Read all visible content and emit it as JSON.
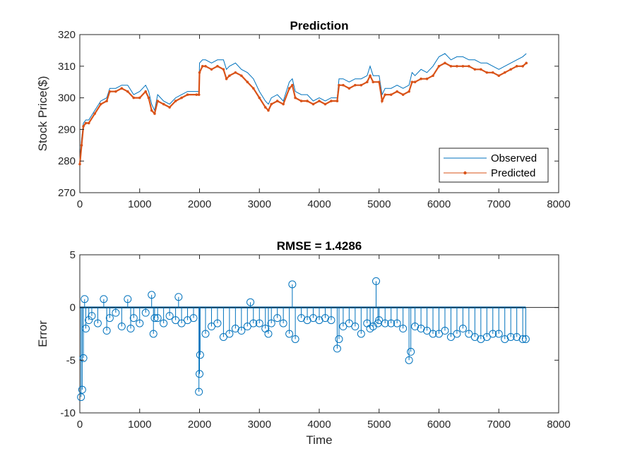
{
  "chart_data": [
    {
      "type": "line",
      "title": "Prediction",
      "xlabel": "",
      "ylabel": "Stock Price($)",
      "xlim": [
        0,
        8000
      ],
      "ylim": [
        270,
        320
      ],
      "xticks": [
        0,
        1000,
        2000,
        3000,
        4000,
        5000,
        6000,
        7000,
        8000
      ],
      "yticks": [
        270,
        280,
        290,
        300,
        310,
        320
      ],
      "grid": false,
      "legend": {
        "position": "bottom-right",
        "entries": [
          "Observed",
          "Predicted"
        ]
      },
      "series": [
        {
          "name": "Observed",
          "color": "#0072BD",
          "marker": "none",
          "x": [
            0,
            30,
            60,
            100,
            150,
            250,
            350,
            450,
            500,
            600,
            700,
            800,
            900,
            1000,
            1100,
            1150,
            1200,
            1250,
            1300,
            1400,
            1500,
            1600,
            1700,
            1800,
            1950,
            1990,
            2000,
            2050,
            2100,
            2200,
            2300,
            2400,
            2450,
            2500,
            2600,
            2700,
            2800,
            2900,
            3000,
            3100,
            3150,
            3200,
            3300,
            3400,
            3500,
            3550,
            3600,
            3700,
            3800,
            3900,
            4000,
            4100,
            4200,
            4300,
            4330,
            4400,
            4500,
            4600,
            4700,
            4800,
            4850,
            4900,
            5000,
            5050,
            5100,
            5200,
            5300,
            5400,
            5500,
            5550,
            5600,
            5700,
            5800,
            5900,
            6000,
            6100,
            6200,
            6300,
            6400,
            6500,
            6600,
            6700,
            6800,
            6900,
            7000,
            7100,
            7200,
            7300,
            7400,
            7460
          ],
          "y": [
            280,
            287,
            292,
            293,
            293,
            296,
            299,
            300,
            303,
            303,
            304,
            304,
            301,
            302,
            304,
            302,
            298,
            296,
            301,
            299,
            298,
            300,
            301,
            302,
            302,
            302,
            311,
            312,
            312,
            311,
            312,
            312,
            309,
            310,
            311,
            309,
            308,
            306,
            302,
            299,
            298,
            300,
            301,
            299,
            305,
            306,
            302,
            301,
            301,
            299,
            300,
            299,
            300,
            300,
            306,
            306,
            305,
            306,
            306,
            307,
            310,
            307,
            307,
            301,
            303,
            303,
            304,
            303,
            304,
            308,
            307,
            309,
            308,
            310,
            313,
            314,
            312,
            313,
            313,
            312,
            312,
            311,
            311,
            310,
            309,
            310,
            311,
            312,
            313,
            314
          ]
        },
        {
          "name": "Predicted",
          "color": "#D95319",
          "marker": "dot",
          "x": [
            0,
            30,
            60,
            100,
            150,
            250,
            350,
            450,
            500,
            600,
            700,
            800,
            900,
            1000,
            1100,
            1150,
            1200,
            1250,
            1300,
            1400,
            1500,
            1600,
            1700,
            1800,
            1950,
            1990,
            2000,
            2050,
            2100,
            2200,
            2300,
            2400,
            2450,
            2500,
            2600,
            2700,
            2800,
            2900,
            3000,
            3100,
            3150,
            3200,
            3300,
            3400,
            3500,
            3550,
            3600,
            3700,
            3800,
            3900,
            4000,
            4100,
            4200,
            4300,
            4330,
            4400,
            4500,
            4600,
            4700,
            4800,
            4850,
            4900,
            5000,
            5050,
            5100,
            5200,
            5300,
            5400,
            5500,
            5550,
            5600,
            5700,
            5800,
            5900,
            6000,
            6100,
            6200,
            6300,
            6400,
            6500,
            6600,
            6700,
            6800,
            6900,
            7000,
            7100,
            7200,
            7300,
            7400,
            7460
          ],
          "y": [
            279,
            285,
            291,
            292,
            292,
            295,
            298,
            299,
            302,
            302,
            303,
            302,
            300,
            300,
            302,
            300,
            296,
            295,
            299,
            298,
            297,
            299,
            300,
            301,
            301,
            301,
            308,
            310,
            310,
            309,
            310,
            309,
            306,
            307,
            308,
            307,
            305,
            303,
            300,
            297,
            296,
            298,
            299,
            298,
            303,
            304,
            300,
            299,
            299,
            298,
            299,
            298,
            299,
            299,
            304,
            304,
            303,
            304,
            304,
            305,
            307,
            305,
            305,
            299,
            301,
            301,
            302,
            301,
            302,
            305,
            305,
            306,
            306,
            307,
            310,
            311,
            310,
            310,
            310,
            310,
            309,
            309,
            308,
            308,
            307,
            308,
            309,
            310,
            310,
            311
          ]
        }
      ]
    },
    {
      "type": "scatter",
      "title": "RMSE = 1.4286",
      "xlabel": "Time",
      "ylabel": "Error",
      "xlim": [
        0,
        8000
      ],
      "ylim": [
        -10,
        5
      ],
      "xticks": [
        0,
        1000,
        2000,
        3000,
        4000,
        5000,
        6000,
        7000,
        8000
      ],
      "yticks": [
        -10,
        -5,
        0,
        5
      ],
      "grid": false,
      "style": "stem",
      "series": [
        {
          "color": "#0072BD",
          "marker": "circle",
          "x": [
            20,
            40,
            60,
            80,
            100,
            150,
            200,
            300,
            400,
            450,
            500,
            600,
            700,
            800,
            850,
            900,
            1000,
            1100,
            1200,
            1230,
            1250,
            1300,
            1400,
            1500,
            1600,
            1650,
            1700,
            1800,
            1900,
            1990,
            2000,
            2010,
            2100,
            2200,
            2300,
            2400,
            2500,
            2600,
            2700,
            2800,
            2850,
            2900,
            3000,
            3100,
            3150,
            3200,
            3300,
            3400,
            3500,
            3550,
            3600,
            3700,
            3800,
            3900,
            4000,
            4100,
            4200,
            4300,
            4330,
            4400,
            4500,
            4600,
            4700,
            4800,
            4850,
            4900,
            4950,
            4980,
            5000,
            5100,
            5200,
            5300,
            5400,
            5500,
            5530,
            5600,
            5700,
            5800,
            5900,
            6000,
            6100,
            6200,
            6300,
            6400,
            6500,
            6600,
            6700,
            6800,
            6900,
            7000,
            7100,
            7200,
            7300,
            7400,
            7450
          ],
          "y": [
            -8.5,
            -7.8,
            -4.8,
            0.8,
            -2.0,
            -1.2,
            -0.8,
            -1.5,
            0.8,
            -2.2,
            -1.0,
            -0.5,
            -1.8,
            0.8,
            -2.0,
            -1.0,
            -1.5,
            -0.5,
            1.2,
            -2.5,
            -1.0,
            -1.0,
            -1.5,
            -0.8,
            -1.2,
            1.0,
            -1.5,
            -1.2,
            -1.0,
            -8.0,
            -6.3,
            -4.5,
            -2.5,
            -1.8,
            -1.5,
            -2.8,
            -2.5,
            -2.0,
            -2.2,
            -1.8,
            0.5,
            -1.5,
            -1.5,
            -2.0,
            -2.5,
            -1.5,
            -1.0,
            -1.5,
            -2.5,
            2.2,
            -3.0,
            -1.0,
            -1.2,
            -1.0,
            -1.2,
            -1.0,
            -1.2,
            -3.9,
            -3.0,
            -1.8,
            -1.5,
            -1.8,
            -2.5,
            -1.5,
            -2.0,
            -1.8,
            2.5,
            -1.5,
            -1.2,
            -1.5,
            -1.5,
            -1.5,
            -2.0,
            -5.0,
            -4.2,
            -1.8,
            -2.0,
            -2.2,
            -2.5,
            -2.5,
            -2.2,
            -2.8,
            -2.5,
            -2.0,
            -2.5,
            -2.8,
            -3.0,
            -2.8,
            -2.5,
            -2.5,
            -3.0,
            -2.8,
            -2.8,
            -3.0,
            -3.0
          ]
        }
      ]
    }
  ]
}
